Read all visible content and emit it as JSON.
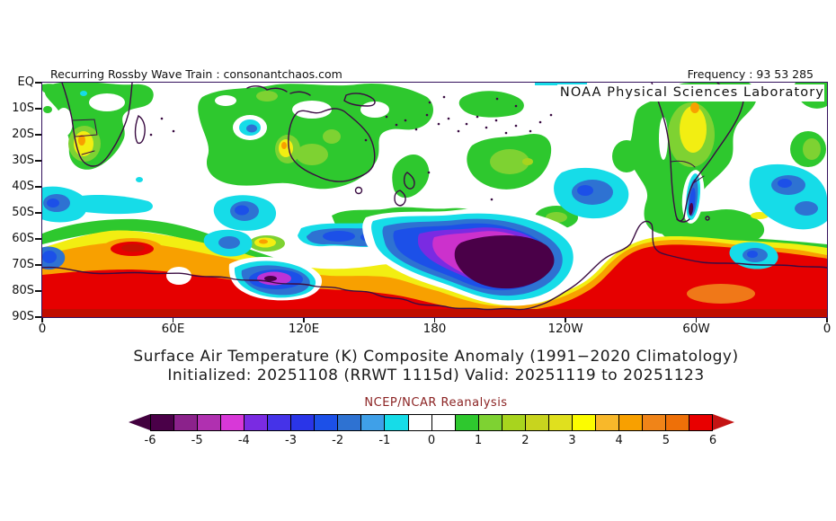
{
  "header": {
    "left_caption": "Recurring Rossby Wave Train : consonantchaos.com",
    "right_caption": "Frequency : 93 53 285",
    "agency_overlay": "NOAA Physical Sciences Laboratory"
  },
  "map": {
    "lat_ticks": [
      "EQ",
      "10S",
      "20S",
      "30S",
      "40S",
      "50S",
      "60S",
      "70S",
      "80S",
      "90S"
    ],
    "lon_ticks": [
      "0",
      "60E",
      "120E",
      "180",
      "120W",
      "60W",
      "0"
    ]
  },
  "titles": {
    "line1": "Surface Air Temperature (K) Composite Anomaly (1991−2020 Climatology)",
    "line2": "Initialized: 20251108 (RRWT 1115d) Valid: 20251119 to 20251123",
    "credit": "NCEP/NCAR Reanalysis"
  },
  "colorbar": {
    "labels": [
      "-6",
      "-5",
      "-4",
      "-3",
      "-2",
      "-1",
      "0",
      "1",
      "2",
      "3",
      "4",
      "5",
      "6"
    ],
    "segment_colors": [
      "#4a0048",
      "#8b228b",
      "#b030b0",
      "#d838d8",
      "#7a2be2",
      "#4533e8",
      "#2a35e8",
      "#1c50e8",
      "#2e72d2",
      "#3fa0e8",
      "#16dce8",
      "#ffffff",
      "#ffffff",
      "#2ec82e",
      "#7ed232",
      "#a8d41e",
      "#c8d41e",
      "#e0e01e",
      "#fcfc00",
      "#f8b82a",
      "#f8a000",
      "#f08418",
      "#ee7008",
      "#e80000"
    ],
    "left_arrow_color": "#42003e",
    "right_arrow_color": "#c41414",
    "outline_color": "#000000"
  },
  "chart_data": {
    "type": "heatmap",
    "title": "Surface Air Temperature (K) Composite Anomaly (1991−2020 Climatology)",
    "subtitle": "Initialized: 20251108 (RRWT 1115d) Valid: 20251119 to 20251123",
    "dataset": "NCEP/NCAR Reanalysis",
    "source": "NOAA Physical Sciences Laboratory",
    "site_caption": "Recurring Rossby Wave Train : consonantchaos.com",
    "frequency": "93 53 285",
    "variable": "Surface Air Temperature anomaly",
    "units": "K",
    "climatology": "1991-2020",
    "initialized": "20251108",
    "composite_id": "RRWT 1115d",
    "valid_period": "20251119 to 20251123",
    "axes": {
      "lon_ticks": [
        "0",
        "60E",
        "120E",
        "180",
        "120W",
        "60W",
        "0"
      ],
      "lat_ticks": [
        "EQ",
        "10S",
        "20S",
        "30S",
        "40S",
        "50S",
        "60S",
        "70S",
        "80S",
        "90S"
      ],
      "lon_range_deg_east": [
        0,
        360
      ],
      "lat_range": [
        "EQ",
        "90S"
      ]
    },
    "levels": {
      "min": -6,
      "max": 6,
      "step": 0.5,
      "labeled": [
        -6,
        -5,
        -4,
        -3,
        -2,
        -1,
        0,
        1,
        2,
        3,
        4,
        5,
        6
      ]
    },
    "colors": [
      "#4a0048",
      "#8b228b",
      "#b030b0",
      "#d838d8",
      "#7a2be2",
      "#4533e8",
      "#2a35e8",
      "#1c50e8",
      "#2e72d2",
      "#3fa0e8",
      "#16dce8",
      "#ffffff",
      "#ffffff",
      "#2ec82e",
      "#7ed232",
      "#a8d41e",
      "#c8d41e",
      "#e0e01e",
      "#fcfc00",
      "#f8b82a",
      "#f8a000",
      "#f08418",
      "#ee7008",
      "#e80000"
    ],
    "features": [
      {
        "region": "Ross/Amundsen Sea sector (165E-125W, 58-82S)",
        "anomaly_K": -6
      },
      {
        "region": "Wilkes Land coast (105-130E, 70-80S)",
        "anomaly_K": -4.5
      },
      {
        "region": "Patagonian Andes (70W, 38-52S)",
        "anomaly_K": -5
      },
      {
        "region": "SE Pacific (125-100W, 35-50S)",
        "anomaly_K": -2
      },
      {
        "region": "South Atlantic (30-5W, 33-55S)",
        "anomaly_K": -2
      },
      {
        "region": "South Indian Ocean (78-102E, 40-55S)",
        "anomaly_K": -2
      },
      {
        "region": "SE Atlantic (0-18E, 41-51S)",
        "anomaly_K": -2
      },
      {
        "region": "NW Australia interior (125-135E, 15-22S)",
        "anomaly_K": -1.5
      },
      {
        "region": "Antarctic continent rim (75-90S, all longitudes)",
        "anomaly_K": 6
      },
      {
        "region": "Weddell Sea / Antarctic Peninsula (80W-20W, 60-85S)",
        "anomaly_K": 5.5
      },
      {
        "region": "Indian Ocean Antarctic coast (25-45E, 62-68S)",
        "anomaly_K": 5.5
      },
      {
        "region": "Southern Africa (15-25E, 20-30S)",
        "anomaly_K": 3
      },
      {
        "region": "Western Australia (112-120E, 22-32S)",
        "anomaly_K": 2.5
      },
      {
        "region": "Argentina/Paraguay (65-50W, 20-38S)",
        "anomaly_K": 3.5
      },
      {
        "region": "Subtropical mid-latitude band (0-35S, most longitudes)",
        "anomaly_K": 1
      }
    ]
  }
}
